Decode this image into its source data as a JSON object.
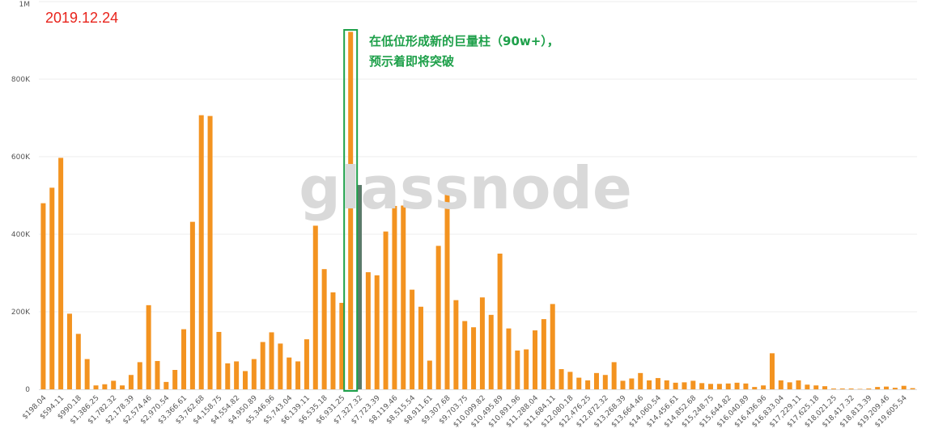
{
  "annotation": {
    "date": "2019.12.24",
    "line1": "在低位形成新的巨量柱（90w+），",
    "line2": "预示着即将突破"
  },
  "watermark": "glassnode",
  "colors": {
    "bar": "#f39320",
    "current_price_bar": "#5b7a6a",
    "highlight_box": "#1ea04a",
    "date_text": "#e8231b",
    "annotation_text": "#1ea04a",
    "grid": "#eeeeee",
    "watermark": "#d9d9d9"
  },
  "chart_data": {
    "type": "bar",
    "ylim": [
      0,
      1000000
    ],
    "grid": true,
    "legend": "none",
    "y_ticks": [
      {
        "value": 0,
        "label": "0"
      },
      {
        "value": 200000,
        "label": "200K"
      },
      {
        "value": 400000,
        "label": "400K"
      },
      {
        "value": 600000,
        "label": "600K"
      },
      {
        "value": 800000,
        "label": "800K"
      },
      {
        "value": 1000000,
        "label": "1M"
      }
    ],
    "x_tick_labels": [
      "$198.04",
      "$594.11",
      "$990.18",
      "$1,386.25",
      "$1,782.32",
      "$2,178.39",
      "$2,574.46",
      "$2,970.54",
      "$3,366.61",
      "$3,762.68",
      "$4,158.75",
      "$4,554.82",
      "$4,950.89",
      "$5,346.96",
      "$5,743.04",
      "$6,139.11",
      "$6,535.18",
      "$6,931.25",
      "$7,327.32",
      "$7,723.39",
      "$8,119.46",
      "$8,515.54",
      "$8,911.61",
      "$9,307.68",
      "$9,703.75",
      "$10,099.82",
      "$10,495.89",
      "$10,891.96",
      "$11,288.04",
      "$11,684.11",
      "$12,080.18",
      "$12,476.25",
      "$12,872.32",
      "$13,268.39",
      "$13,664.46",
      "$14,060.54",
      "$14,456.61",
      "$14,852.68",
      "$15,248.75",
      "$15,644.82",
      "$16,040.89",
      "$16,436.96",
      "$16,833.04",
      "$17,229.11",
      "$17,625.18",
      "$18,021.25",
      "$18,417.32",
      "$18,813.39",
      "$19,209.46",
      "$19,605.54"
    ],
    "values": [
      480000,
      520000,
      597000,
      195000,
      143000,
      78000,
      10000,
      13000,
      22000,
      10000,
      37000,
      70000,
      217000,
      73000,
      19000,
      50000,
      155000,
      432000,
      707000,
      705000,
      148000,
      67000,
      72000,
      47000,
      78000,
      122000,
      147000,
      118000,
      82000,
      72000,
      129000,
      422000,
      310000,
      250000,
      223000,
      922000,
      527000,
      302000,
      294000,
      407000,
      473000,
      474000,
      257000,
      213000,
      74000,
      370000,
      505000,
      230000,
      176000,
      160000,
      237000,
      192000,
      350000,
      157000,
      100000,
      103000,
      152000,
      181000,
      220000,
      52000,
      45000,
      30000,
      23000,
      42000,
      37000,
      70000,
      22000,
      28000,
      42000,
      23000,
      29000,
      23000,
      17000,
      18000,
      22000,
      16000,
      14000,
      14000,
      15000,
      17000,
      15000,
      6000,
      10000,
      93000,
      23000,
      18000,
      23000,
      12000,
      10000,
      8000,
      2000,
      2000,
      2000,
      1000,
      2000,
      6000,
      7000,
      4000,
      9000,
      3000
    ],
    "highlight_index": 35,
    "current_price_index": 36
  }
}
